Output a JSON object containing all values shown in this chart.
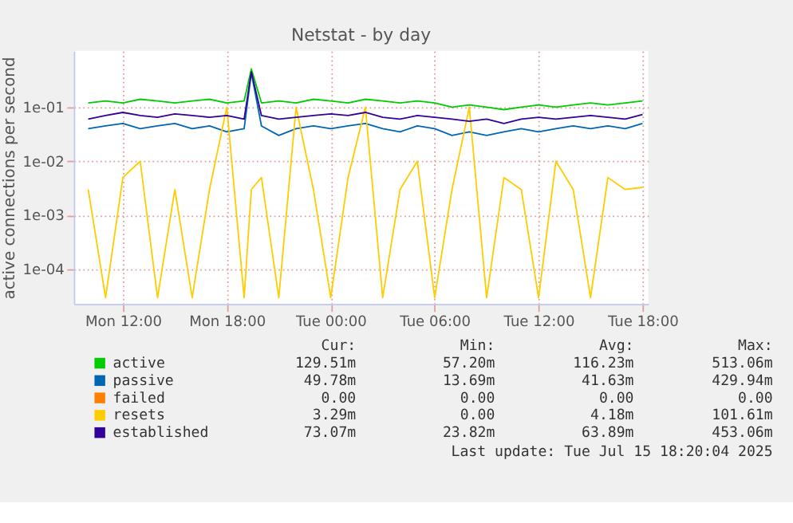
{
  "chart_data": {
    "type": "line",
    "title": "Netstat - by day",
    "ylabel": "active connections per second",
    "x": [
      "2025-07-14T10:00",
      "2025-07-14T11:00",
      "2025-07-14T12:00",
      "2025-07-14T13:00",
      "2025-07-14T14:00",
      "2025-07-14T15:00",
      "2025-07-14T16:00",
      "2025-07-14T17:00",
      "2025-07-14T18:00",
      "2025-07-14T19:00",
      "2025-07-14T19:25",
      "2025-07-14T20:00",
      "2025-07-14T21:00",
      "2025-07-14T22:00",
      "2025-07-14T23:00",
      "2025-07-15T00:00",
      "2025-07-15T01:00",
      "2025-07-15T02:00",
      "2025-07-15T03:00",
      "2025-07-15T04:00",
      "2025-07-15T05:00",
      "2025-07-15T06:00",
      "2025-07-15T07:00",
      "2025-07-15T08:00",
      "2025-07-15T09:00",
      "2025-07-15T10:00",
      "2025-07-15T11:00",
      "2025-07-15T12:00",
      "2025-07-15T13:00",
      "2025-07-15T14:00",
      "2025-07-15T15:00",
      "2025-07-15T16:00",
      "2025-07-15T17:00",
      "2025-07-15T18:00"
    ],
    "series": [
      {
        "name": "active",
        "color": "#00cc00",
        "values": [
          0.12,
          0.13,
          0.12,
          0.14,
          0.13,
          0.12,
          0.13,
          0.14,
          0.12,
          0.13,
          0.51,
          0.12,
          0.13,
          0.12,
          0.14,
          0.13,
          0.12,
          0.14,
          0.13,
          0.12,
          0.13,
          0.12,
          0.1,
          0.11,
          0.1,
          0.09,
          0.1,
          0.11,
          0.1,
          0.11,
          0.12,
          0.11,
          0.12,
          0.13
        ]
      },
      {
        "name": "passive",
        "color": "#0066b3",
        "values": [
          0.04,
          0.045,
          0.05,
          0.04,
          0.045,
          0.05,
          0.04,
          0.045,
          0.035,
          0.04,
          0.43,
          0.045,
          0.03,
          0.04,
          0.045,
          0.04,
          0.045,
          0.05,
          0.04,
          0.035,
          0.045,
          0.04,
          0.03,
          0.035,
          0.03,
          0.035,
          0.04,
          0.035,
          0.04,
          0.045,
          0.04,
          0.045,
          0.04,
          0.05
        ]
      },
      {
        "name": "failed",
        "color": "#ff8000",
        "values": [
          null,
          null,
          null,
          null,
          null,
          null,
          null,
          null,
          null,
          null,
          null,
          null,
          null,
          null,
          null,
          null,
          null,
          null,
          null,
          null,
          null,
          null,
          null,
          null,
          null,
          null,
          null,
          null,
          null,
          null,
          null,
          null,
          null,
          null
        ]
      },
      {
        "name": "resets",
        "color": "#ffcc00",
        "values": [
          0.003,
          3e-05,
          0.005,
          0.01,
          3e-05,
          0.003,
          3e-05,
          0.003,
          0.1,
          3e-05,
          0.003,
          0.005,
          3e-05,
          0.1,
          0.003,
          3e-05,
          0.005,
          0.1,
          3e-05,
          0.003,
          0.01,
          3e-05,
          0.003,
          0.1,
          3e-05,
          0.005,
          0.003,
          3e-05,
          0.01,
          0.003,
          3e-05,
          0.005,
          0.003,
          0.00329
        ]
      },
      {
        "name": "established",
        "color": "#330099",
        "values": [
          0.06,
          0.07,
          0.08,
          0.07,
          0.065,
          0.075,
          0.07,
          0.065,
          0.07,
          0.06,
          0.45,
          0.07,
          0.06,
          0.065,
          0.07,
          0.075,
          0.07,
          0.08,
          0.065,
          0.06,
          0.07,
          0.065,
          0.06,
          0.055,
          0.06,
          0.05,
          0.06,
          0.065,
          0.06,
          0.065,
          0.07,
          0.065,
          0.06,
          0.073
        ]
      }
    ],
    "log": true,
    "ylim": [
      2.3e-05,
      1.1
    ],
    "yticks": [
      {
        "value": 0.0001,
        "label": "1e-04"
      },
      {
        "value": 0.001,
        "label": "1e-03"
      },
      {
        "value": 0.01,
        "label": "1e-02"
      },
      {
        "value": 0.1,
        "label": "1e-01"
      }
    ],
    "xlim": [
      "2025-07-14T09:10",
      "2025-07-15T18:20"
    ],
    "xticks": [
      {
        "value": "2025-07-14T12:00",
        "label": "Mon 12:00"
      },
      {
        "value": "2025-07-14T18:00",
        "label": "Mon 18:00"
      },
      {
        "value": "2025-07-15T00:00",
        "label": "Tue 00:00"
      },
      {
        "value": "2025-07-15T06:00",
        "label": "Tue 06:00"
      },
      {
        "value": "2025-07-15T12:00",
        "label": "Tue 12:00"
      },
      {
        "value": "2025-07-15T18:00",
        "label": "Tue 18:00"
      }
    ],
    "grid": true,
    "legend": "bottom",
    "annotations": [
      "Cur:",
      "Min:",
      "Avg:",
      "Max:",
      "129.51m",
      "57.20m",
      "116.23m",
      "513.06m",
      "49.78m",
      "13.69m",
      "41.63m",
      "429.94m",
      "0.00",
      "0.00",
      "0.00",
      "0.00",
      "3.29m",
      "0.00",
      "4.18m",
      "101.61m",
      "73.07m",
      "23.82m",
      "63.89m",
      "453.06m",
      "Last update: Tue Jul 15 18:20:04 2025"
    ]
  }
}
